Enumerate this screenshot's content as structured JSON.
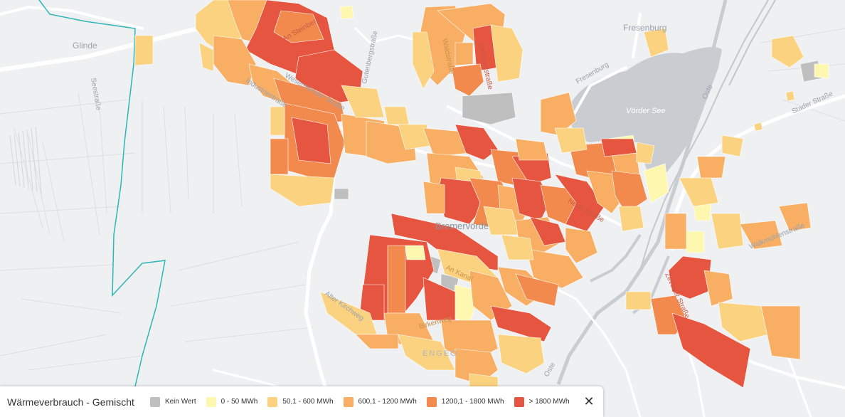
{
  "colors": {
    "background": "#eef0f2",
    "road": "#ffffff",
    "water": "#c9cdd2",
    "boundary": "#2fb5b5",
    "kein_wert": "#bfbfbf",
    "c0_50": "#fdf7b0",
    "c50_600": "#fbd27f",
    "c600_1200": "#f8ae63",
    "c1200_1800": "#f28a4e",
    "c1800": "#e6553f"
  },
  "map": {
    "labels": {
      "glinde": "Glinde",
      "seestrasse": "Seestraße",
      "fresenburg_town": "Fresenburg",
      "fresenburg_road": "Fresenburg",
      "voerder_see": "Vörder See",
      "oste_north": "Oste",
      "stader_strasse": "Stader Straße",
      "gutenbergstrasse": "Gutenbergstraße",
      "an_steinberg": "An Steinberg",
      "industriestrasse": "Industriestraße",
      "wesermuender_strasse": "Wesermünder Straße",
      "waldstrasse": "Waldstraße",
      "bremervoerde": "Bremervörde",
      "neue_strasse": "Neue Straße",
      "an_kanal": "An Kanal",
      "alter_kirchweg": "Alter Kirchweg",
      "birkenweg": "Birkenweg",
      "engeo": "ENGEO",
      "oste_south": "Oste",
      "zevener_strasse": "Zevener Straße",
      "walkmuehlenstrasse": "Walkmühlenstraße",
      "bahnhofstrasse": "Bahnhofstraße"
    }
  },
  "legend": {
    "title": "Wärmeverbrauch - Gemischt",
    "items": [
      {
        "label": "Kein Wert",
        "color": "#bfbfbf"
      },
      {
        "label": "0 - 50 MWh",
        "color": "#fdf7b0"
      },
      {
        "label": "50,1 - 600 MWh",
        "color": "#fbd27f"
      },
      {
        "label": "600,1 - 1200 MWh",
        "color": "#f8ae63"
      },
      {
        "label": "1200,1 - 1800 MWh",
        "color": "#f28a4e"
      },
      {
        "label": "> 1800 MWh",
        "color": "#e6553f"
      }
    ],
    "close_label": "✕"
  }
}
